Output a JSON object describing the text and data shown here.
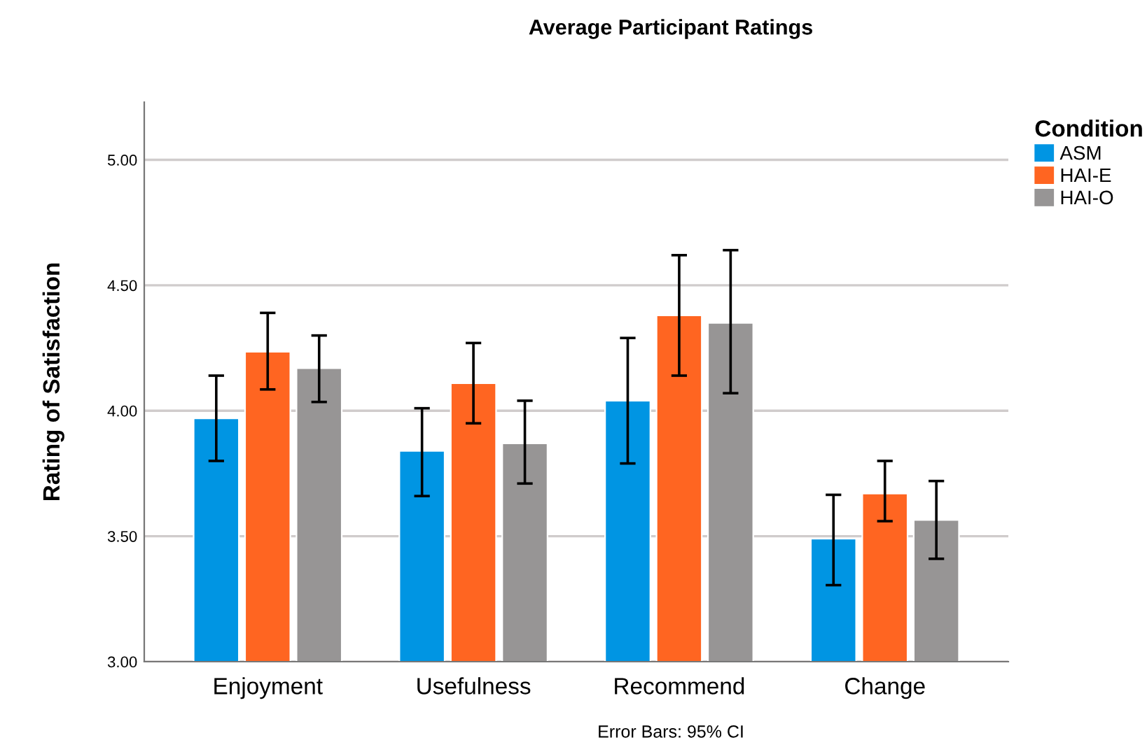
{
  "chart_data": {
    "type": "bar",
    "title": "Average Participant Ratings",
    "ylabel": "Rating of Satisfaction",
    "legend_title": "Condition",
    "categories": [
      "Enjoyment",
      "Usefulness",
      "Recommend",
      "Change"
    ],
    "series": [
      {
        "name": "ASM",
        "color": "#0095e3",
        "values": [
          3.97,
          3.84,
          4.04,
          3.49
        ],
        "errors": [
          [
            3.8,
            4.14
          ],
          [
            3.66,
            4.01
          ],
          [
            3.79,
            4.29
          ],
          [
            3.305,
            3.665
          ]
        ]
      },
      {
        "name": "HAI-E",
        "color": "#ff6521",
        "values": [
          4.235,
          4.11,
          4.38,
          3.67
        ],
        "errors": [
          [
            4.085,
            4.39
          ],
          [
            3.95,
            4.27
          ],
          [
            4.14,
            4.62
          ],
          [
            3.56,
            3.8
          ]
        ]
      },
      {
        "name": "HAI-O",
        "color": "#979595",
        "values": [
          4.17,
          3.87,
          4.35,
          3.565
        ],
        "errors": [
          [
            4.035,
            4.3
          ],
          [
            3.71,
            4.04
          ],
          [
            4.07,
            4.64
          ],
          [
            3.41,
            3.72
          ]
        ]
      }
    ],
    "ylim": [
      3,
      5.23
    ],
    "yticks": [
      {
        "value": 3,
        "label": "3.00"
      },
      {
        "value": 3.5,
        "label": "3.50"
      },
      {
        "value": 4,
        "label": "4.00"
      },
      {
        "value": 4.5,
        "label": "4.50"
      },
      {
        "value": 5,
        "label": "5.00"
      }
    ],
    "grid": "y",
    "legend": "top right",
    "annotations": [
      "Error Bars: 95% CI"
    ]
  }
}
